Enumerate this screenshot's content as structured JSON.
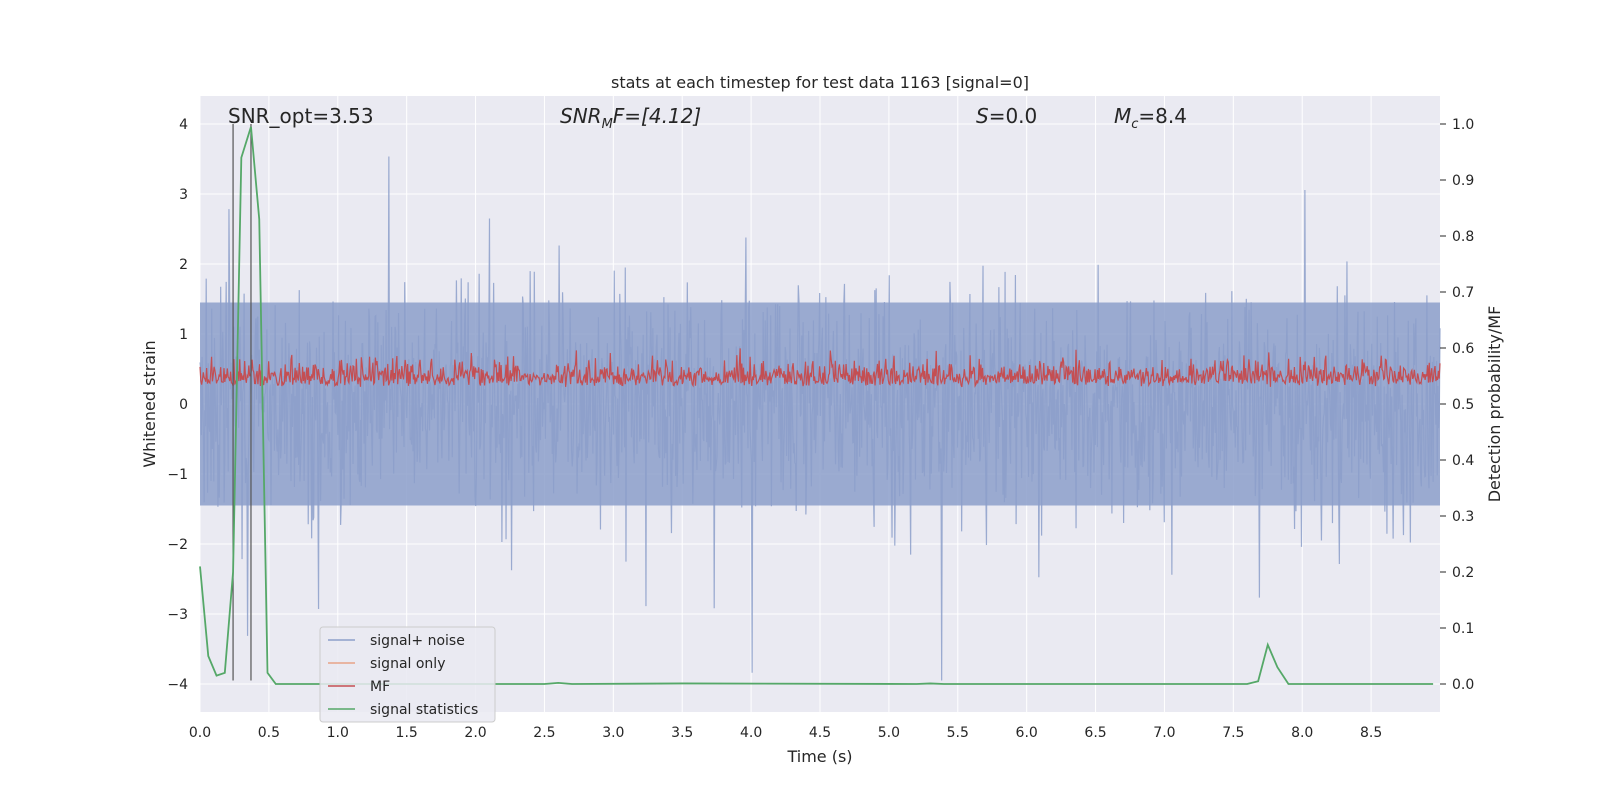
{
  "chart_data": {
    "type": "line",
    "title": "stats at each timestep for test data 1163 [signal=0]",
    "xlabel": "Time (s)",
    "ylabel_left": "Whitened strain",
    "ylabel_right": "Detection probability/MF",
    "xlim": [
      0.0,
      9.0
    ],
    "ylim_left": [
      -4.4,
      4.4
    ],
    "ylim_right": [
      -0.05,
      1.05
    ],
    "x_ticks": [
      "0.0",
      "0.5",
      "1.0",
      "1.5",
      "2.0",
      "2.5",
      "3.0",
      "3.5",
      "4.0",
      "4.5",
      "5.0",
      "5.5",
      "6.0",
      "6.5",
      "7.0",
      "7.5",
      "8.0",
      "8.5"
    ],
    "y_ticks_left": [
      "4",
      "3",
      "2",
      "1",
      "0",
      "−1",
      "−2",
      "−3",
      "−4"
    ],
    "y_ticks_right": [
      "1.0",
      "0.9",
      "0.8",
      "0.7",
      "0.6",
      "0.5",
      "0.4",
      "0.3",
      "0.2",
      "0.1",
      "0.0"
    ],
    "grid": true,
    "legend_position": "lower-left",
    "annotations": {
      "snr_opt": "SNR_opt=3.53",
      "snr_mf_main": "SNR",
      "snr_mf_sub": "M",
      "snr_mf_rest": "F=[4.12]",
      "s_main": "S",
      "s_rest": "=0.0",
      "mc_main": "M",
      "mc_sub": "c",
      "mc_rest": "=8.4"
    },
    "vertical_lines_x": [
      0.24,
      0.37
    ],
    "series": [
      {
        "name": "signal+ noise",
        "color": "#8c9fca",
        "axis": "left",
        "description": "white noise, amplitude roughly ±1.5 with spikes up to ±4"
      },
      {
        "name": "signal only",
        "color": "#e8a388",
        "axis": "left",
        "values": []
      },
      {
        "name": "MF",
        "color": "#c44e52",
        "axis": "right",
        "description": "values roughly 0.50–0.60"
      },
      {
        "name": "signal statistics",
        "color": "#55a868",
        "axis": "right",
        "x": [
          0.0,
          0.06,
          0.12,
          0.18,
          0.24,
          0.3,
          0.37,
          0.43,
          0.49,
          0.55,
          0.9,
          2.0,
          2.5,
          2.6,
          2.7,
          3.5,
          5.2,
          5.3,
          5.4,
          7.6,
          7.68,
          7.75,
          7.82,
          7.9,
          8.5,
          8.95
        ],
        "values": [
          0.21,
          0.05,
          0.015,
          0.02,
          0.2,
          0.94,
          0.995,
          0.83,
          0.02,
          0.0,
          0.0,
          0.0,
          0.0,
          0.002,
          0.0,
          0.001,
          0.0,
          0.001,
          0.0,
          0.0,
          0.005,
          0.07,
          0.03,
          0.0,
          0.0,
          0.0
        ]
      }
    ]
  }
}
